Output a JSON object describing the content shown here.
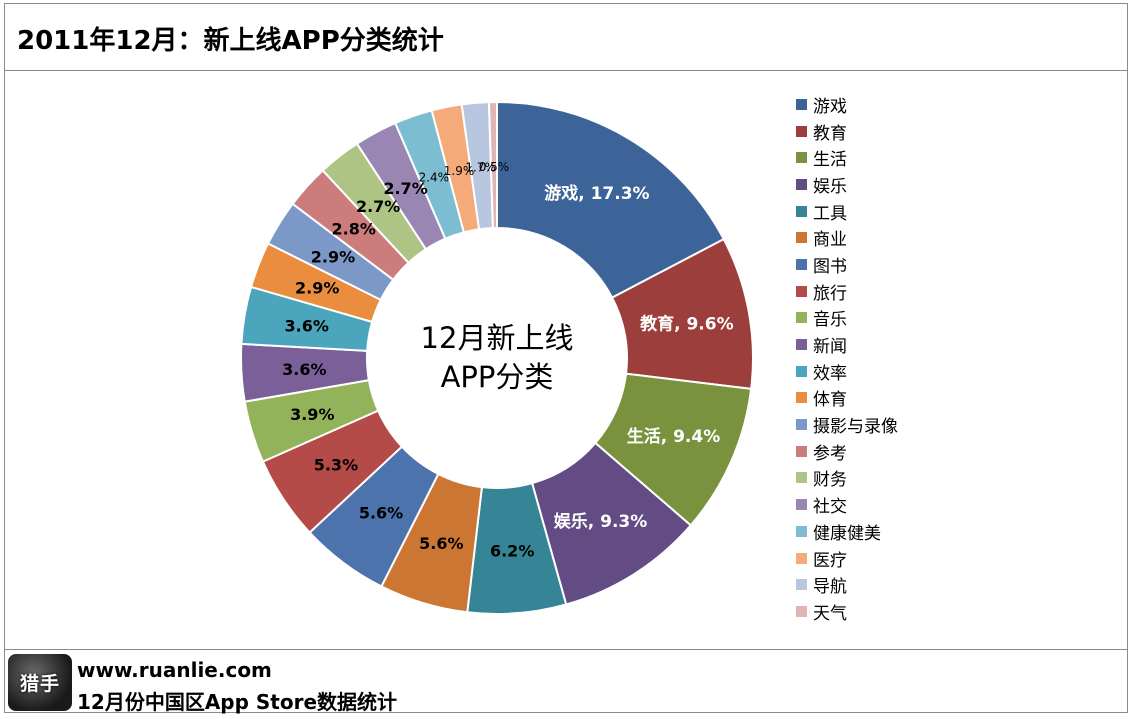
{
  "header": {
    "title": "2011年12月：新上线APP分类统计"
  },
  "chart_data": {
    "type": "pie",
    "center_label_lines": [
      "12月新上线",
      "APP分类"
    ],
    "categories": [
      "游戏",
      "教育",
      "生活",
      "娱乐",
      "工具",
      "商业",
      "图书",
      "旅行",
      "音乐",
      "新闻",
      "效率",
      "体育",
      "摄影与录像",
      "参考",
      "财务",
      "社交",
      "健康健美",
      "医疗",
      "导航",
      "天气"
    ],
    "values": [
      17.3,
      9.6,
      9.4,
      9.3,
      6.2,
      5.6,
      5.6,
      5.3,
      3.9,
      3.6,
      3.6,
      2.9,
      2.9,
      2.8,
      2.7,
      2.7,
      2.4,
      1.9,
      1.7,
      0.5
    ],
    "data_labels": [
      "游戏, 17.3%",
      "教育, 9.6%",
      "生活, 9.4%",
      "娱乐, 9.3%",
      "6.2%",
      "5.6%",
      "5.6%",
      "5.3%",
      "3.9%",
      "3.6%",
      "3.6%",
      "2.9%",
      "2.9%",
      "2.8%",
      "2.7%",
      "2.7%",
      "2.4%",
      "1.9%",
      "1.7%",
      "0.5%"
    ],
    "colors": [
      "#3d6499",
      "#9c3f3c",
      "#7a923e",
      "#634b84",
      "#358596",
      "#cb7633",
      "#4d73ad",
      "#b54b48",
      "#93b35a",
      "#7b5f99",
      "#4aa5bd",
      "#ea8d3e",
      "#7c98c9",
      "#cc7d7b",
      "#aec485",
      "#9a86b2",
      "#7dbdd1",
      "#f5aa79",
      "#b9c6e0",
      "#e0b6b5"
    ],
    "legend": [
      "游戏",
      "教育",
      "生活",
      "娱乐",
      "工具",
      "商业",
      "图书",
      "旅行",
      "音乐",
      "新闻",
      "效率",
      "体育",
      "摄影与录像",
      "参考",
      "财务",
      "社交",
      "健康健美",
      "医疗",
      "导航",
      "天气"
    ],
    "legend_placement": "right"
  },
  "footer": {
    "logo_text": "猎手",
    "url": "www.ruanlie.com",
    "subtitle": "12月份中国区App  Store数据统计"
  }
}
